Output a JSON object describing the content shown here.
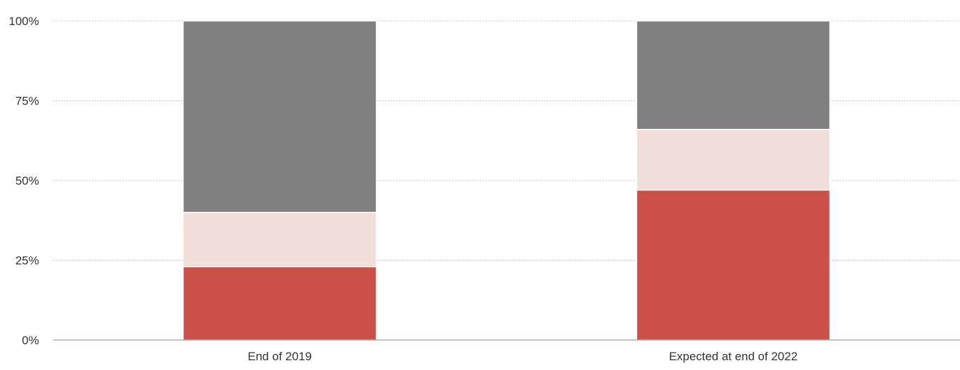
{
  "chart_data": {
    "type": "bar",
    "stacked": true,
    "categories": [
      "End of 2019",
      "Expected at end of 2022"
    ],
    "series": [
      {
        "color": "#c9514a",
        "values": [
          23,
          47
        ]
      },
      {
        "color": "#f1ddd9",
        "values": [
          17,
          19
        ]
      },
      {
        "color": "#808080",
        "values": [
          60,
          34
        ]
      }
    ],
    "y_ticks": [
      {
        "value": 0,
        "label": "0%"
      },
      {
        "value": 25,
        "label": "25%"
      },
      {
        "value": 50,
        "label": "50%"
      },
      {
        "value": 75,
        "label": "75%"
      },
      {
        "value": 100,
        "label": "100%"
      }
    ],
    "ylim": [
      0,
      100
    ],
    "grid": true,
    "legend": "none",
    "title": "",
    "xlabel": "",
    "ylabel": ""
  }
}
